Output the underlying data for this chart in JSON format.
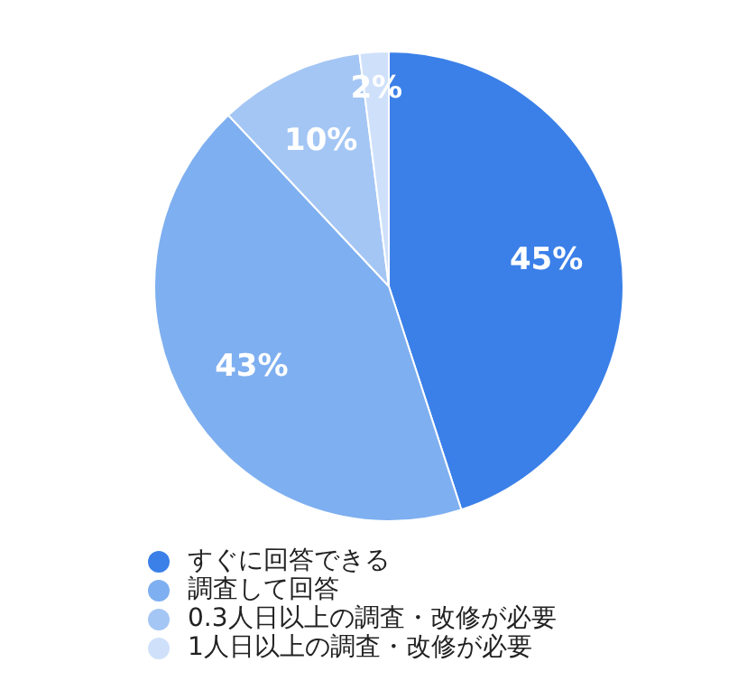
{
  "chart_data": {
    "type": "pie",
    "categories": [
      "すぐに回答できる",
      "調査して回答",
      "0.3人日以上の調査・改修が必要",
      "1人日以上の調査・改修が必要"
    ],
    "values": [
      45,
      43,
      10,
      2
    ],
    "colors": [
      "#3b80e8",
      "#7eaff0",
      "#a4c6f4",
      "#cfe1fa"
    ],
    "value_labels": [
      "45%",
      "43%",
      "10%",
      "2%"
    ],
    "legend": "bottom"
  }
}
